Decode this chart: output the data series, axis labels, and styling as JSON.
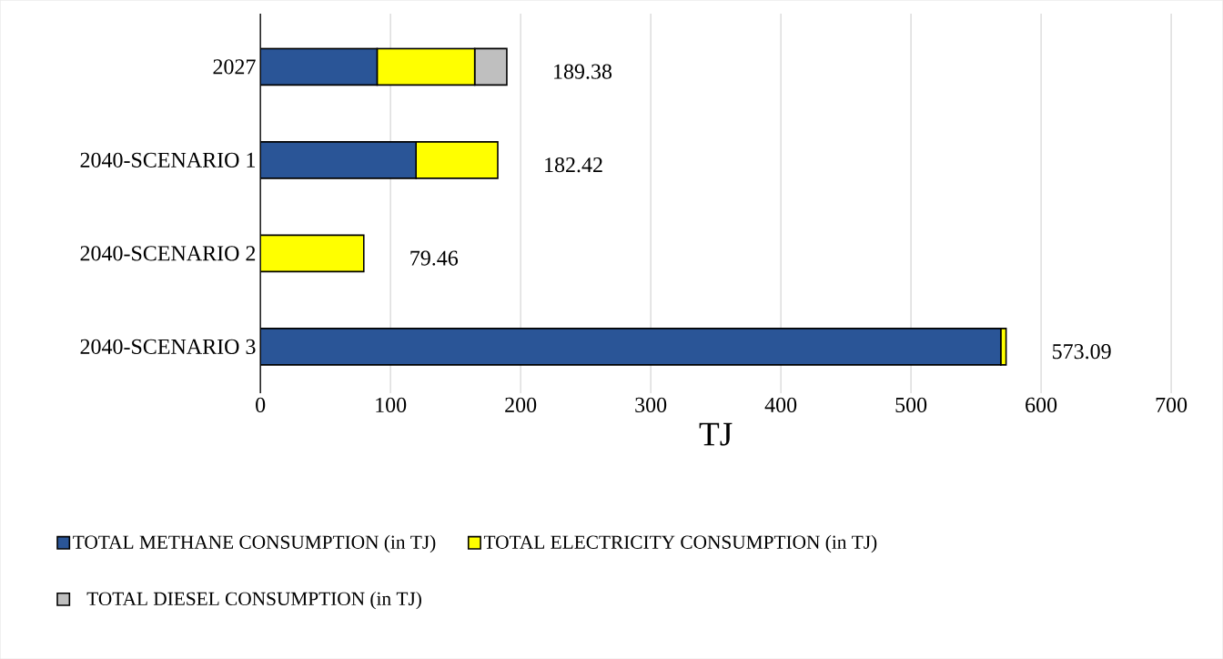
{
  "chart_data": {
    "type": "bar",
    "orientation": "horizontal",
    "stacked": true,
    "xlabel": "TJ",
    "categories": [
      "2027",
      "2040-SCENARIO 1",
      "2040-SCENARIO 2",
      "2040-SCENARIO 3"
    ],
    "series": [
      {
        "name": "TOTAL METHANE CONSUMPTION (in TJ)",
        "color": "#2a5597",
        "values": [
          89.7,
          119.62,
          null,
          569.0
        ]
      },
      {
        "name": "TOTAL ELECTRICITY CONSUMPTION (in TJ)",
        "color": "#ffff00",
        "values": [
          75.0,
          62.8,
          79.46,
          4.09
        ]
      },
      {
        "name": "TOTAL DIESEL CONSUMPTION (in TJ)",
        "color": "#bfbfbf",
        "values": [
          24.68,
          null,
          null,
          null
        ]
      }
    ],
    "totals": [
      "189.38",
      "182.42",
      "79.46",
      "573.09"
    ],
    "xlim": [
      0,
      700
    ],
    "xticks": [
      0,
      100,
      200,
      300,
      400,
      500,
      600,
      700
    ],
    "grid": "x",
    "legend": "bottom"
  }
}
